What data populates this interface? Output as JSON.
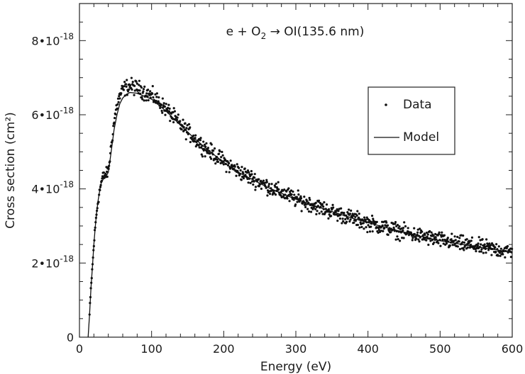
{
  "chart_data": {
    "type": "scatter",
    "title": "",
    "annotation": {
      "prefix": "e + O",
      "subscript": "2",
      "suffix": " → OI(135.6 nm)"
    },
    "xlabel": "Energy (eV)",
    "ylabel": "Cross section (cm²)",
    "xlim": [
      0,
      600
    ],
    "ylim": [
      0,
      9e-18
    ],
    "x_ticks": [
      {
        "value": 0,
        "label": "0"
      },
      {
        "value": 100,
        "label": "100"
      },
      {
        "value": 200,
        "label": "200"
      },
      {
        "value": 300,
        "label": "300"
      },
      {
        "value": 400,
        "label": "400"
      },
      {
        "value": 500,
        "label": "500"
      },
      {
        "value": 600,
        "label": "600"
      }
    ],
    "y_ticks": [
      {
        "value": 0,
        "base": "0",
        "exp": ""
      },
      {
        "value": 2e-18,
        "base": "2•10",
        "exp": "-18"
      },
      {
        "value": 4e-18,
        "base": "4•10",
        "exp": "-18"
      },
      {
        "value": 6e-18,
        "base": "6•10",
        "exp": "-18"
      },
      {
        "value": 8e-18,
        "base": "8•10",
        "exp": "-18"
      }
    ],
    "grid": false,
    "legend": {
      "position": "right",
      "entries": [
        {
          "label": "Data",
          "style": "dots"
        },
        {
          "label": "Model",
          "style": "line"
        }
      ]
    },
    "series": [
      {
        "name": "Data",
        "style": "dots",
        "spread": 1.3e-19,
        "points": [
          [
            14,
            6e-19
          ],
          [
            16,
            1.35e-18
          ],
          [
            18,
            1.9e-18
          ],
          [
            20,
            2.5e-18
          ],
          [
            22,
            3e-18
          ],
          [
            24,
            3.4e-18
          ],
          [
            26,
            3.7e-18
          ],
          [
            28,
            3.95e-18
          ],
          [
            30,
            4.15e-18
          ],
          [
            32,
            4.3e-18
          ],
          [
            34,
            4.35e-18
          ],
          [
            36,
            4.38e-18
          ],
          [
            38,
            4.42e-18
          ],
          [
            40,
            4.5e-18
          ],
          [
            42,
            4.8e-18
          ],
          [
            44,
            5.15e-18
          ],
          [
            46,
            5.5e-18
          ],
          [
            48,
            5.8e-18
          ],
          [
            50,
            6.05e-18
          ],
          [
            52,
            6.25e-18
          ],
          [
            55,
            6.45e-18
          ],
          [
            58,
            6.6e-18
          ],
          [
            62,
            6.7e-18
          ],
          [
            66,
            6.75e-18
          ],
          [
            70,
            6.78e-18
          ],
          [
            75,
            6.75e-18
          ],
          [
            80,
            6.72e-18
          ],
          [
            85,
            6.68e-18
          ],
          [
            90,
            6.62e-18
          ],
          [
            95,
            6.55e-18
          ],
          [
            100,
            6.52e-18
          ],
          [
            110,
            6.35e-18
          ],
          [
            120,
            6.15e-18
          ],
          [
            130,
            5.95e-18
          ],
          [
            140,
            5.72e-18
          ],
          [
            150,
            5.55e-18
          ],
          [
            160,
            5.35e-18
          ],
          [
            170,
            5.18e-18
          ],
          [
            180,
            5.02e-18
          ],
          [
            190,
            4.88e-18
          ],
          [
            200,
            4.75e-18
          ],
          [
            210,
            4.6e-18
          ],
          [
            220,
            4.48e-18
          ],
          [
            230,
            4.38e-18
          ],
          [
            240,
            4.28e-18
          ],
          [
            250,
            4.18e-18
          ],
          [
            260,
            4.08e-18
          ],
          [
            270,
            3.98e-18
          ],
          [
            280,
            3.9e-18
          ],
          [
            290,
            3.82e-18
          ],
          [
            300,
            3.72e-18
          ],
          [
            320,
            3.6e-18
          ],
          [
            340,
            3.45e-18
          ],
          [
            360,
            3.32e-18
          ],
          [
            380,
            3.2e-18
          ],
          [
            400,
            3.08e-18
          ],
          [
            420,
            2.98e-18
          ],
          [
            440,
            2.88e-18
          ],
          [
            460,
            2.78e-18
          ],
          [
            480,
            2.7e-18
          ],
          [
            500,
            2.62e-18
          ],
          [
            520,
            2.55e-18
          ],
          [
            540,
            2.48e-18
          ],
          [
            560,
            2.42e-18
          ],
          [
            580,
            2.36e-18
          ],
          [
            600,
            2.3e-18
          ]
        ]
      },
      {
        "name": "Model",
        "style": "line",
        "points": [
          [
            12,
            0.0
          ],
          [
            14,
            6e-19
          ],
          [
            16,
            1.35e-18
          ],
          [
            18,
            1.9e-18
          ],
          [
            20,
            2.5e-18
          ],
          [
            22,
            3e-18
          ],
          [
            24,
            3.4e-18
          ],
          [
            26,
            3.7e-18
          ],
          [
            28,
            3.95e-18
          ],
          [
            30,
            4.15e-18
          ],
          [
            34,
            4.3e-18
          ],
          [
            38,
            4.38e-18
          ],
          [
            40,
            4.45e-18
          ],
          [
            44,
            5e-18
          ],
          [
            48,
            5.6e-18
          ],
          [
            52,
            6e-18
          ],
          [
            56,
            6.3e-18
          ],
          [
            60,
            6.45e-18
          ],
          [
            65,
            6.55e-18
          ],
          [
            70,
            6.6e-18
          ],
          [
            80,
            6.58e-18
          ],
          [
            90,
            6.5e-18
          ],
          [
            100,
            6.42e-18
          ],
          [
            120,
            6.1e-18
          ],
          [
            140,
            5.72e-18
          ],
          [
            160,
            5.35e-18
          ],
          [
            180,
            5.02e-18
          ],
          [
            200,
            4.72e-18
          ],
          [
            220,
            4.45e-18
          ],
          [
            240,
            4.25e-18
          ],
          [
            260,
            4.05e-18
          ],
          [
            280,
            3.88e-18
          ],
          [
            300,
            3.72e-18
          ],
          [
            340,
            3.45e-18
          ],
          [
            380,
            3.2e-18
          ],
          [
            420,
            2.98e-18
          ],
          [
            460,
            2.78e-18
          ],
          [
            500,
            2.6e-18
          ],
          [
            540,
            2.47e-18
          ],
          [
            580,
            2.35e-18
          ],
          [
            600,
            2.28e-18
          ]
        ]
      }
    ]
  }
}
